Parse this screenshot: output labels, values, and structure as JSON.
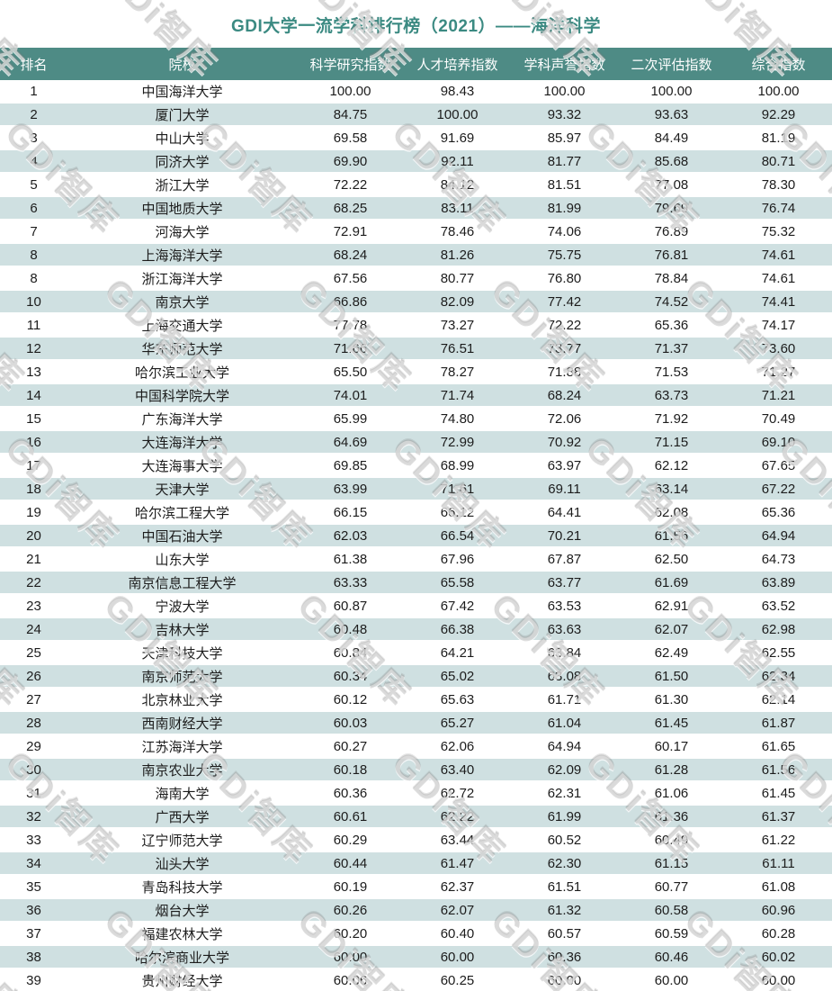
{
  "title": "GDI大学一流学科排行榜（2021）——海洋科学",
  "watermark_text": "GDi智库",
  "colors": {
    "header_bg": "#4e8b85",
    "alt_row_bg": "#cfe0e1",
    "title_color": "#3b8a82"
  },
  "chart_data": {
    "type": "table",
    "title": "GDI大学一流学科排行榜（2021）——海洋科学",
    "columns": [
      "排名",
      "院校",
      "科学研究指数",
      "人才培养指数",
      "学科声誉指数",
      "二次评估指数",
      "综合指数"
    ],
    "rows": [
      [
        "1",
        "中国海洋大学",
        "100.00",
        "98.43",
        "100.00",
        "100.00",
        "100.00"
      ],
      [
        "2",
        "厦门大学",
        "84.75",
        "100.00",
        "93.32",
        "93.63",
        "92.29"
      ],
      [
        "3",
        "中山大学",
        "69.58",
        "91.69",
        "85.97",
        "84.49",
        "81.19"
      ],
      [
        "4",
        "同济大学",
        "69.90",
        "92.11",
        "81.77",
        "85.68",
        "80.71"
      ],
      [
        "5",
        "浙江大学",
        "72.22",
        "84.12",
        "81.51",
        "77.08",
        "78.30"
      ],
      [
        "6",
        "中国地质大学",
        "68.25",
        "83.11",
        "81.99",
        "79.69",
        "76.74"
      ],
      [
        "7",
        "河海大学",
        "72.91",
        "78.46",
        "74.06",
        "76.89",
        "75.32"
      ],
      [
        "8",
        "上海海洋大学",
        "68.24",
        "81.26",
        "75.75",
        "76.81",
        "74.61"
      ],
      [
        "8",
        "浙江海洋大学",
        "67.56",
        "80.77",
        "76.80",
        "78.84",
        "74.61"
      ],
      [
        "10",
        "南京大学",
        "66.86",
        "82.09",
        "77.42",
        "74.52",
        "74.41"
      ],
      [
        "11",
        "上海交通大学",
        "77.78",
        "73.27",
        "72.22",
        "65.36",
        "74.17"
      ],
      [
        "12",
        "华东师范大学",
        "71.66",
        "76.51",
        "73.77",
        "71.37",
        "73.60"
      ],
      [
        "13",
        "哈尔滨工业大学",
        "65.50",
        "78.27",
        "71.88",
        "71.53",
        "71.27"
      ],
      [
        "14",
        "中国科学院大学",
        "74.01",
        "71.74",
        "68.24",
        "63.73",
        "71.21"
      ],
      [
        "15",
        "广东海洋大学",
        "65.99",
        "74.80",
        "72.06",
        "71.92",
        "70.49"
      ],
      [
        "16",
        "大连海洋大学",
        "64.69",
        "72.99",
        "70.92",
        "71.15",
        "69.10"
      ],
      [
        "17",
        "大连海事大学",
        "69.85",
        "68.99",
        "63.97",
        "62.12",
        "67.65"
      ],
      [
        "18",
        "天津大学",
        "63.99",
        "71.61",
        "69.11",
        "63.14",
        "67.22"
      ],
      [
        "19",
        "哈尔滨工程大学",
        "66.15",
        "66.12",
        "64.41",
        "62.08",
        "65.36"
      ],
      [
        "20",
        "中国石油大学",
        "62.03",
        "66.54",
        "70.21",
        "61.56",
        "64.94"
      ],
      [
        "21",
        "山东大学",
        "61.38",
        "67.96",
        "67.87",
        "62.50",
        "64.73"
      ],
      [
        "22",
        "南京信息工程大学",
        "63.33",
        "65.58",
        "63.77",
        "61.69",
        "63.89"
      ],
      [
        "23",
        "宁波大学",
        "60.87",
        "67.42",
        "63.53",
        "62.91",
        "63.52"
      ],
      [
        "24",
        "吉林大学",
        "60.48",
        "66.38",
        "63.63",
        "62.07",
        "62.98"
      ],
      [
        "25",
        "天津科技大学",
        "60.84",
        "64.21",
        "63.84",
        "62.49",
        "62.55"
      ],
      [
        "26",
        "南京师范大学",
        "60.34",
        "65.02",
        "63.08",
        "61.50",
        "62.34"
      ],
      [
        "27",
        "北京林业大学",
        "60.12",
        "65.63",
        "61.71",
        "61.30",
        "62.14"
      ],
      [
        "28",
        "西南财经大学",
        "60.03",
        "65.27",
        "61.04",
        "61.45",
        "61.87"
      ],
      [
        "29",
        "江苏海洋大学",
        "60.27",
        "62.06",
        "64.94",
        "60.17",
        "61.65"
      ],
      [
        "30",
        "南京农业大学",
        "60.18",
        "63.40",
        "62.09",
        "61.28",
        "61.56"
      ],
      [
        "31",
        "海南大学",
        "60.36",
        "62.72",
        "62.31",
        "61.06",
        "61.45"
      ],
      [
        "32",
        "广西大学",
        "60.61",
        "62.22",
        "61.99",
        "61.36",
        "61.37"
      ],
      [
        "33",
        "辽宁师范大学",
        "60.29",
        "63.44",
        "60.52",
        "60.49",
        "61.22"
      ],
      [
        "34",
        "汕头大学",
        "60.44",
        "61.47",
        "62.30",
        "61.15",
        "61.11"
      ],
      [
        "35",
        "青岛科技大学",
        "60.19",
        "62.37",
        "61.51",
        "60.77",
        "61.08"
      ],
      [
        "36",
        "烟台大学",
        "60.26",
        "62.07",
        "61.32",
        "60.58",
        "60.96"
      ],
      [
        "37",
        "福建农林大学",
        "60.20",
        "60.40",
        "60.57",
        "60.59",
        "60.28"
      ],
      [
        "38",
        "哈尔滨商业大学",
        "60.00",
        "60.00",
        "60.36",
        "60.46",
        "60.02"
      ],
      [
        "39",
        "贵州财经大学",
        "60.06",
        "60.25",
        "60.00",
        "60.00",
        "60.00"
      ]
    ]
  }
}
